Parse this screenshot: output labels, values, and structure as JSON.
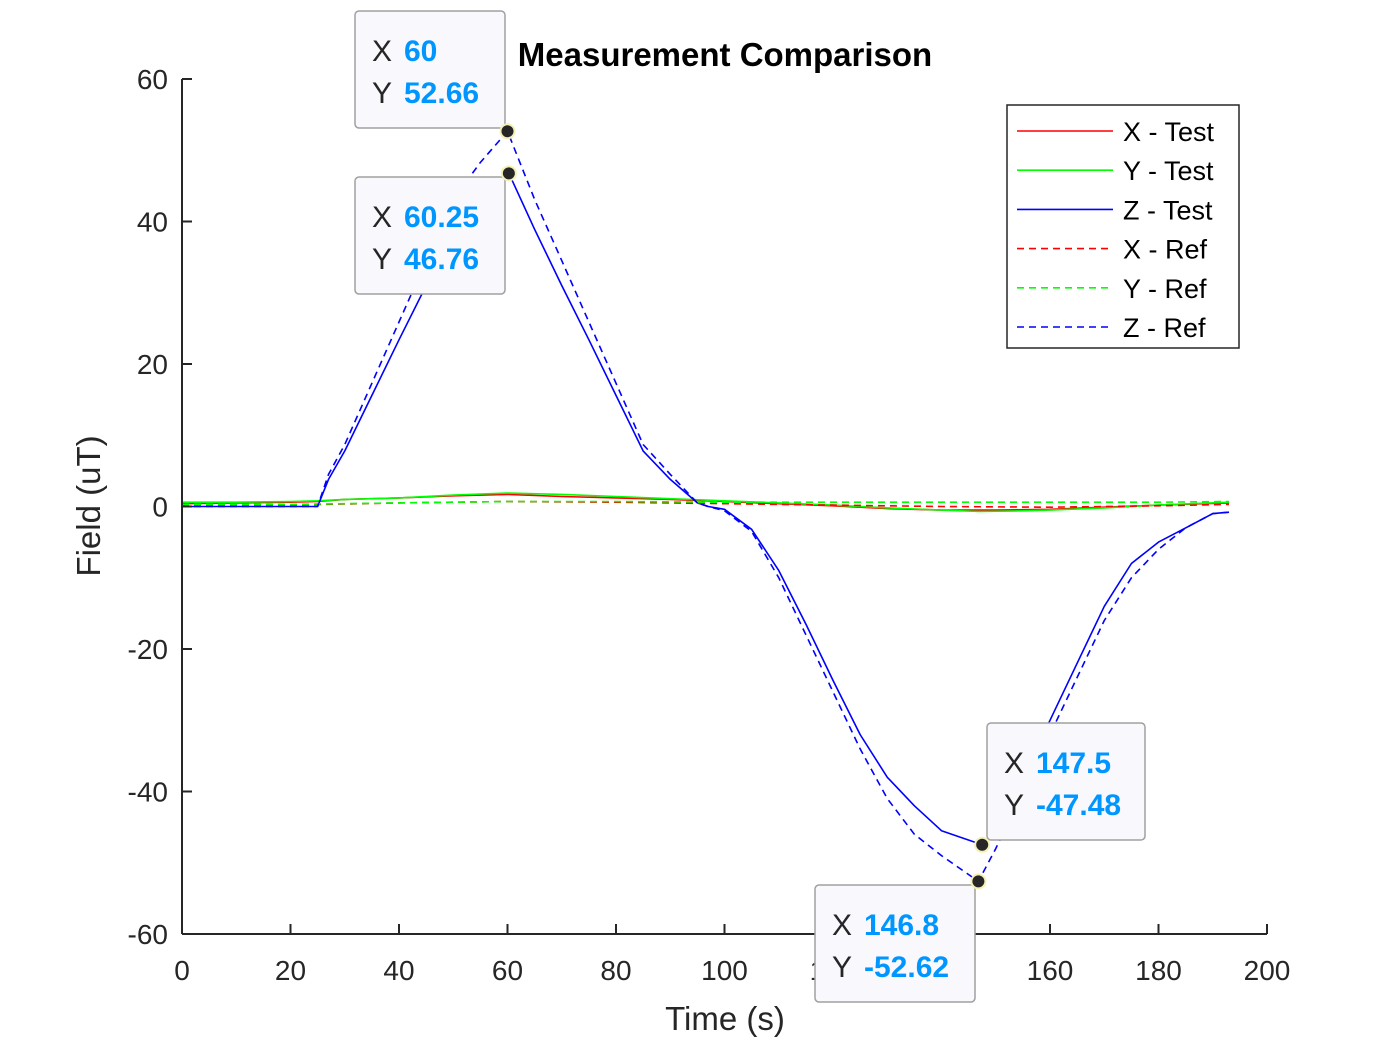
{
  "chart_data": {
    "type": "line",
    "title": "Measurement Comparison",
    "xlabel": "Time (s)",
    "ylabel": "Field (uT)",
    "xlim": [
      0,
      200
    ],
    "ylim": [
      -60,
      60
    ],
    "xticks": [
      0,
      20,
      40,
      60,
      80,
      100,
      120,
      140,
      160,
      180,
      200
    ],
    "xtick_labels": [
      "0",
      "20",
      "40",
      "60",
      "80",
      "100",
      "120",
      "140",
      "160",
      "180",
      "200"
    ],
    "yticks": [
      -60,
      -40,
      -20,
      0,
      20,
      40,
      60
    ],
    "ytick_labels": [
      "-60",
      "-40",
      "-20",
      "0",
      "20",
      "40",
      "60"
    ],
    "grid": false,
    "legend_position": "top-right",
    "series": [
      {
        "name": "X - Test",
        "color": "#ff0000",
        "style": "solid",
        "x": [
          0,
          10,
          20,
          25,
          30,
          40,
          50,
          60,
          70,
          80,
          90,
          100,
          110,
          120,
          130,
          140,
          150,
          160,
          170,
          180,
          193
        ],
        "y": [
          0.4,
          0.5,
          0.6,
          0.7,
          1.0,
          1.2,
          1.5,
          1.7,
          1.4,
          1.2,
          1.0,
          0.7,
          0.4,
          0.1,
          -0.3,
          -0.5,
          -0.5,
          -0.4,
          -0.1,
          0.2,
          0.5
        ]
      },
      {
        "name": "Y - Test",
        "color": "#00ff00",
        "style": "solid",
        "x": [
          0,
          10,
          20,
          25,
          30,
          40,
          50,
          60,
          70,
          80,
          90,
          100,
          110,
          120,
          130,
          140,
          147,
          155,
          160,
          170,
          180,
          193
        ],
        "y": [
          0.6,
          0.6,
          0.7,
          0.8,
          1.0,
          1.2,
          1.6,
          1.9,
          1.7,
          1.4,
          1.1,
          0.8,
          0.5,
          0.2,
          -0.2,
          -0.5,
          -0.7,
          -0.6,
          -0.5,
          -0.2,
          0.2,
          0.6
        ]
      },
      {
        "name": "Z - Test",
        "color": "#0000ff",
        "style": "solid",
        "x": [
          0,
          25,
          27,
          30,
          35,
          40,
          45,
          50,
          55,
          60.25,
          65,
          70,
          75,
          80,
          85,
          90,
          95,
          97,
          100,
          105,
          110,
          115,
          120,
          125,
          130,
          135,
          140,
          147.5,
          150,
          155,
          160,
          165,
          170,
          175,
          180,
          185,
          190,
          193
        ],
        "y": [
          0.0,
          0.0,
          3.8,
          7.8,
          15.6,
          23.4,
          31.0,
          38.9,
          42.9,
          46.76,
          38.9,
          31.0,
          23.4,
          15.6,
          7.8,
          3.8,
          0.5,
          0.0,
          -0.4,
          -3.2,
          -9.0,
          -16.5,
          -24.4,
          -32.0,
          -38.0,
          -42.0,
          -45.5,
          -47.48,
          -45.5,
          -38.0,
          -30.0,
          -22.0,
          -14.0,
          -8.0,
          -5.0,
          -3.0,
          -1.0,
          -0.8
        ]
      },
      {
        "name": "X - Ref",
        "color": "#ff0000",
        "style": "dashed",
        "x": [
          0,
          20,
          40,
          60,
          80,
          100,
          120,
          140,
          160,
          180,
          193
        ],
        "y": [
          0.2,
          0.2,
          0.5,
          0.7,
          0.6,
          0.4,
          0.2,
          0.0,
          -0.1,
          0.1,
          0.3
        ]
      },
      {
        "name": "Y - Ref",
        "color": "#00ff00",
        "style": "dashed",
        "x": [
          0,
          20,
          40,
          60,
          80,
          100,
          120,
          140,
          160,
          180,
          193
        ],
        "y": [
          0.3,
          0.3,
          0.5,
          0.7,
          0.7,
          0.6,
          0.6,
          0.6,
          0.6,
          0.6,
          0.7
        ]
      },
      {
        "name": "Z - Ref",
        "color": "#0000ff",
        "style": "dashed",
        "x": [
          0,
          25,
          27,
          30,
          35,
          40,
          45,
          50,
          55,
          60,
          65,
          70,
          75,
          80,
          85,
          90,
          95,
          97,
          100,
          105,
          110,
          115,
          120,
          125,
          130,
          135,
          140,
          146.8,
          150,
          155,
          160,
          165,
          170,
          175,
          180,
          185,
          190,
          193
        ],
        "y": [
          0.0,
          0.0,
          4.5,
          8.7,
          17.3,
          25.9,
          34.5,
          43.1,
          48.3,
          52.66,
          43.1,
          34.5,
          25.9,
          17.3,
          8.7,
          4.5,
          0.5,
          0.0,
          -0.6,
          -3.5,
          -10.0,
          -18.0,
          -26.0,
          -34.0,
          -41.0,
          -46.0,
          -49.0,
          -52.62,
          -48.0,
          -40.0,
          -32.0,
          -24.0,
          -16.0,
          -10.0,
          -6.0,
          -3.0,
          -1.0,
          -0.8
        ]
      }
    ],
    "datatips": [
      {
        "x_label": "X",
        "y_label": "Y",
        "x": 60,
        "y": 52.66,
        "x_text": "60",
        "y_text": "52.66"
      },
      {
        "x_label": "X",
        "y_label": "Y",
        "x": 60.25,
        "y": 46.76,
        "x_text": "60.25",
        "y_text": "46.76"
      },
      {
        "x_label": "X",
        "y_label": "Y",
        "x": 147.5,
        "y": -47.48,
        "x_text": "147.5",
        "y_text": "-47.48"
      },
      {
        "x_label": "X",
        "y_label": "Y",
        "x": 146.8,
        "y": -52.62,
        "x_text": "146.8",
        "y_text": "-52.62"
      }
    ],
    "datatip_value_color": "#0096ff"
  }
}
